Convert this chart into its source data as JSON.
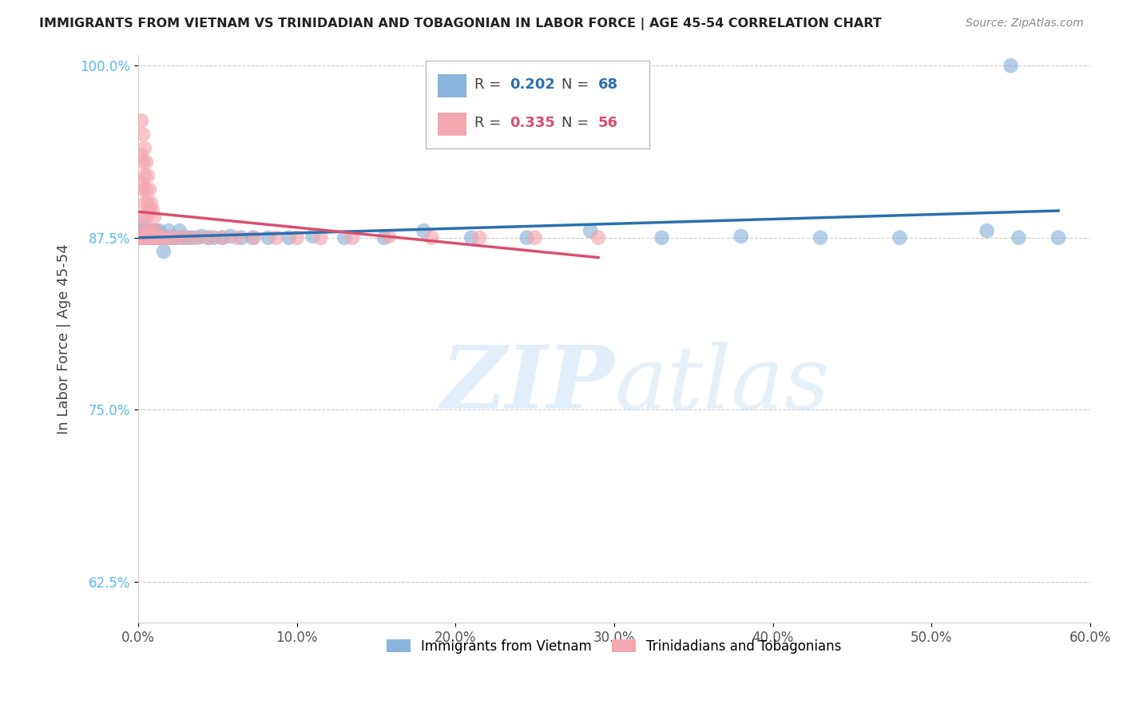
{
  "title": "IMMIGRANTS FROM VIETNAM VS TRINIDADIAN AND TOBAGONIAN IN LABOR FORCE | AGE 45-54 CORRELATION CHART",
  "source": "Source: ZipAtlas.com",
  "ylabel": "In Labor Force | Age 45-54",
  "xlim": [
    0.0,
    0.6
  ],
  "ylim": [
    0.595,
    1.008
  ],
  "xticks": [
    0.0,
    0.1,
    0.2,
    0.3,
    0.4,
    0.5,
    0.6
  ],
  "xticklabels": [
    "0.0%",
    "10.0%",
    "20.0%",
    "30.0%",
    "40.0%",
    "50.0%",
    "60.0%"
  ],
  "yticks": [
    0.625,
    0.75,
    0.875,
    1.0
  ],
  "yticklabels": [
    "62.5%",
    "75.0%",
    "87.5%",
    "100.0%"
  ],
  "blue_color": "#8ab4d9",
  "pink_color": "#f4a7b0",
  "blue_line_color": "#2c6fad",
  "pink_line_color": "#d94f70",
  "R_blue": 0.202,
  "N_blue": 68,
  "R_pink": 0.335,
  "N_pink": 56,
  "legend_label_blue": "Immigrants from Vietnam",
  "legend_label_pink": "Trinidadians and Tobagonians",
  "watermark_zip": "ZIP",
  "watermark_atlas": "atlas",
  "blue_x": [
    0.001,
    0.002,
    0.002,
    0.003,
    0.003,
    0.003,
    0.004,
    0.004,
    0.004,
    0.005,
    0.005,
    0.005,
    0.006,
    0.006,
    0.006,
    0.007,
    0.007,
    0.007,
    0.008,
    0.008,
    0.008,
    0.009,
    0.009,
    0.009,
    0.01,
    0.01,
    0.011,
    0.011,
    0.012,
    0.013,
    0.014,
    0.015,
    0.016,
    0.017,
    0.018,
    0.019,
    0.02,
    0.022,
    0.024,
    0.026,
    0.028,
    0.03,
    0.033,
    0.036,
    0.04,
    0.044,
    0.048,
    0.053,
    0.058,
    0.065,
    0.072,
    0.082,
    0.095,
    0.11,
    0.13,
    0.155,
    0.18,
    0.21,
    0.245,
    0.285,
    0.33,
    0.38,
    0.43,
    0.48,
    0.535,
    0.555,
    0.58,
    0.55
  ],
  "blue_y": [
    0.875,
    0.88,
    0.875,
    0.875,
    0.88,
    0.885,
    0.875,
    0.88,
    0.875,
    0.875,
    0.88,
    0.875,
    0.88,
    0.875,
    0.875,
    0.88,
    0.875,
    0.875,
    0.88,
    0.875,
    0.875,
    0.875,
    0.88,
    0.875,
    0.88,
    0.875,
    0.875,
    0.88,
    0.875,
    0.88,
    0.875,
    0.875,
    0.865,
    0.875,
    0.875,
    0.88,
    0.875,
    0.875,
    0.875,
    0.88,
    0.875,
    0.875,
    0.875,
    0.875,
    0.876,
    0.875,
    0.875,
    0.875,
    0.876,
    0.875,
    0.875,
    0.875,
    0.875,
    0.876,
    0.875,
    0.875,
    0.88,
    0.875,
    0.875,
    0.88,
    0.875,
    0.876,
    0.875,
    0.875,
    0.88,
    0.875,
    0.875,
    1.0
  ],
  "pink_x": [
    0.001,
    0.001,
    0.001,
    0.002,
    0.002,
    0.002,
    0.002,
    0.003,
    0.003,
    0.003,
    0.003,
    0.003,
    0.004,
    0.004,
    0.004,
    0.004,
    0.005,
    0.005,
    0.005,
    0.005,
    0.006,
    0.006,
    0.006,
    0.007,
    0.007,
    0.007,
    0.008,
    0.008,
    0.009,
    0.009,
    0.01,
    0.01,
    0.011,
    0.012,
    0.013,
    0.014,
    0.015,
    0.017,
    0.02,
    0.023,
    0.027,
    0.032,
    0.038,
    0.045,
    0.053,
    0.062,
    0.073,
    0.087,
    0.1,
    0.115,
    0.135,
    0.158,
    0.185,
    0.215,
    0.25,
    0.29
  ],
  "pink_y": [
    0.875,
    0.88,
    0.875,
    0.96,
    0.935,
    0.915,
    0.875,
    0.95,
    0.93,
    0.91,
    0.89,
    0.875,
    0.94,
    0.92,
    0.9,
    0.875,
    0.93,
    0.91,
    0.89,
    0.875,
    0.92,
    0.9,
    0.88,
    0.91,
    0.895,
    0.875,
    0.9,
    0.88,
    0.895,
    0.875,
    0.89,
    0.875,
    0.88,
    0.875,
    0.875,
    0.875,
    0.875,
    0.875,
    0.875,
    0.875,
    0.875,
    0.875,
    0.875,
    0.875,
    0.875,
    0.875,
    0.875,
    0.875,
    0.875,
    0.875,
    0.875,
    0.876,
    0.875,
    0.875,
    0.875,
    0.875
  ]
}
